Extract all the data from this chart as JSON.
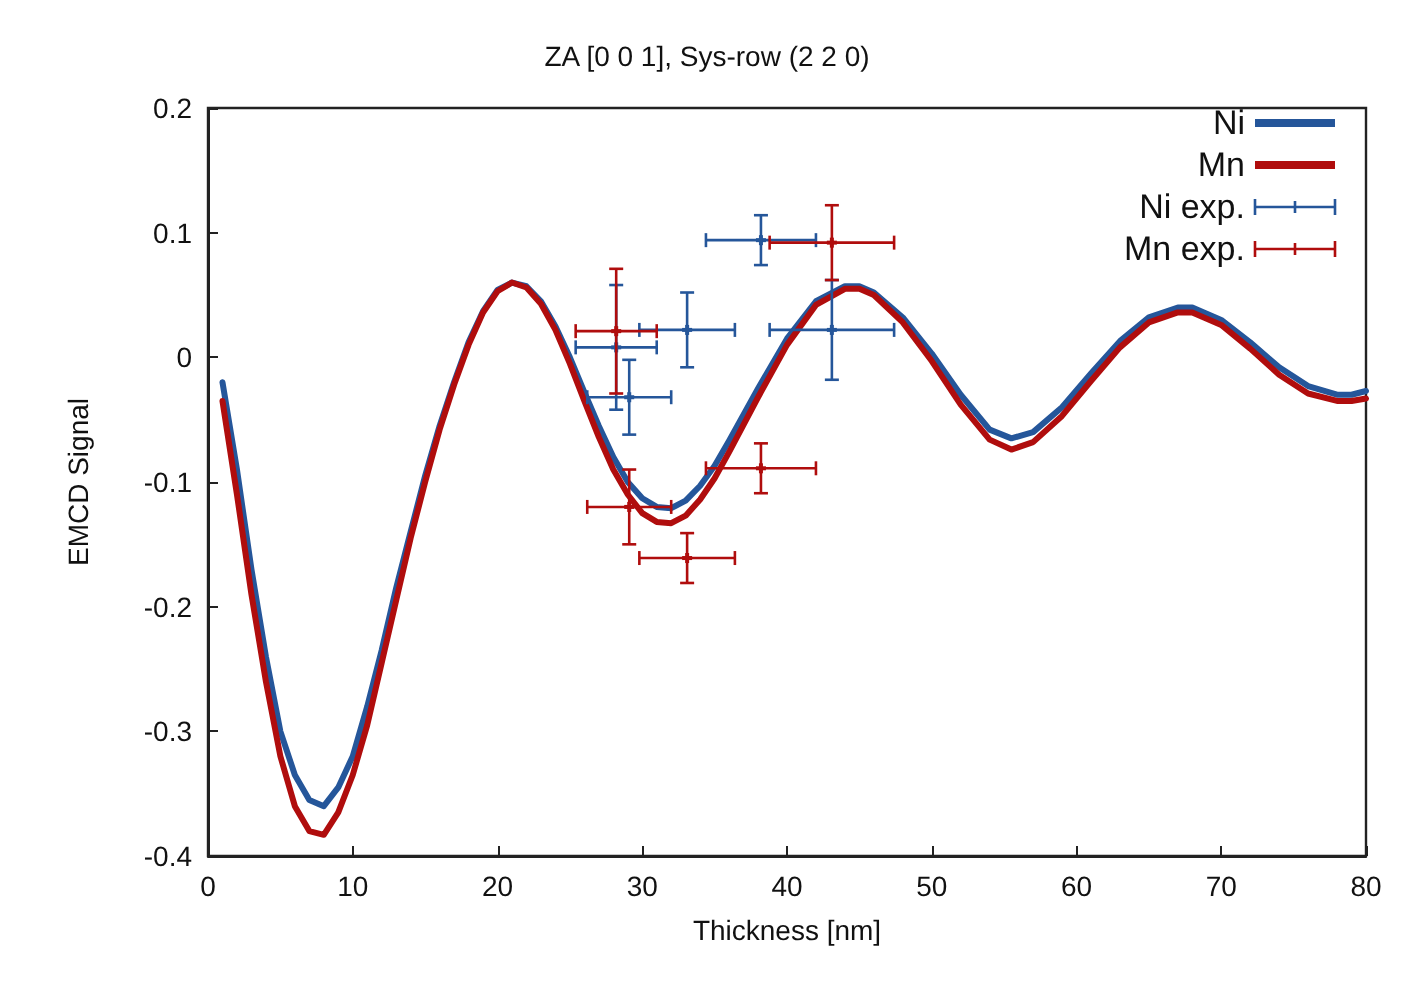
{
  "chart_data": {
    "type": "line",
    "title": "ZA [0 0 1], Sys-row (2 2 0)",
    "xlabel": "Thickness [nm]",
    "ylabel": "EMCD Signal",
    "xlim": [
      0,
      80
    ],
    "xticks": [
      0,
      10,
      20,
      30,
      40,
      50,
      60,
      70,
      80
    ],
    "ylim": [
      -0.4,
      0.2
    ],
    "yticks": [
      -0.4,
      -0.3,
      -0.2,
      -0.1,
      0,
      0.1,
      0.2
    ],
    "grid": false,
    "legend": "top right",
    "line_style": "solid",
    "series": [
      {
        "name": "Ni",
        "color": "#25569a",
        "marker": "none",
        "x": [
          1,
          2,
          3,
          4,
          5,
          6,
          7,
          8,
          9,
          10,
          11,
          12,
          13,
          14,
          15,
          16,
          17,
          18,
          19,
          20,
          21,
          22,
          23,
          24,
          25,
          26,
          27,
          28,
          29,
          30,
          31,
          32,
          33,
          34,
          35,
          36,
          38,
          40,
          42,
          44,
          45,
          46,
          48,
          50,
          52,
          54,
          55.5,
          57,
          59,
          61,
          63,
          65,
          67,
          68,
          70,
          72,
          74,
          76,
          78,
          79,
          80
        ],
        "values": [
          -0.02,
          -0.09,
          -0.17,
          -0.24,
          -0.3,
          -0.335,
          -0.355,
          -0.36,
          -0.345,
          -0.32,
          -0.28,
          -0.235,
          -0.185,
          -0.14,
          -0.095,
          -0.055,
          -0.02,
          0.012,
          0.037,
          0.054,
          0.06,
          0.057,
          0.045,
          0.025,
          0.0,
          -0.028,
          -0.055,
          -0.08,
          -0.1,
          -0.113,
          -0.12,
          -0.121,
          -0.115,
          -0.103,
          -0.087,
          -0.067,
          -0.025,
          0.015,
          0.045,
          0.057,
          0.057,
          0.052,
          0.032,
          0.003,
          -0.03,
          -0.058,
          -0.065,
          -0.06,
          -0.04,
          -0.013,
          0.013,
          0.032,
          0.04,
          0.04,
          0.03,
          0.012,
          -0.008,
          -0.023,
          -0.03,
          -0.03,
          -0.027
        ]
      },
      {
        "name": "Mn",
        "color": "#b00d0d",
        "marker": "none",
        "x": [
          1,
          2,
          3,
          4,
          5,
          6,
          7,
          8,
          9,
          10,
          11,
          12,
          13,
          14,
          15,
          16,
          17,
          18,
          19,
          20,
          21,
          22,
          23,
          24,
          25,
          26,
          27,
          28,
          29,
          30,
          31,
          32,
          33,
          34,
          35,
          36,
          38,
          40,
          42,
          44,
          45,
          46,
          48,
          50,
          52,
          54,
          55.5,
          57,
          59,
          61,
          63,
          65,
          67,
          68,
          70,
          72,
          74,
          76,
          78,
          79,
          80
        ],
        "values": [
          -0.035,
          -0.11,
          -0.19,
          -0.26,
          -0.32,
          -0.36,
          -0.38,
          -0.383,
          -0.365,
          -0.335,
          -0.295,
          -0.245,
          -0.195,
          -0.145,
          -0.1,
          -0.058,
          -0.022,
          0.01,
          0.036,
          0.053,
          0.06,
          0.056,
          0.043,
          0.022,
          -0.005,
          -0.035,
          -0.064,
          -0.09,
          -0.11,
          -0.125,
          -0.132,
          -0.133,
          -0.127,
          -0.114,
          -0.097,
          -0.076,
          -0.032,
          0.01,
          0.042,
          0.055,
          0.055,
          0.05,
          0.028,
          -0.003,
          -0.038,
          -0.066,
          -0.074,
          -0.068,
          -0.047,
          -0.019,
          0.008,
          0.028,
          0.036,
          0.036,
          0.026,
          0.007,
          -0.014,
          -0.029,
          -0.035,
          -0.035,
          -0.033
        ]
      },
      {
        "name": "Ni exp.",
        "type": "scatter",
        "color": "#25569a",
        "marker": "cross",
        "x": [
          38.2,
          33.1,
          43.1,
          28.2,
          29.1
        ],
        "values": [
          0.094,
          0.022,
          0.022,
          0.008,
          -0.032
        ],
        "errors": [
          0.02,
          0.03,
          0.04,
          0.05,
          0.03
        ],
        "xerrors": [
          3.8,
          3.3,
          4.3,
          2.8,
          2.9
        ]
      },
      {
        "name": "Mn exp.",
        "type": "scatter",
        "color": "#b00d0d",
        "marker": "cross",
        "x": [
          43.1,
          28.2,
          38.2,
          29.1,
          33.1
        ],
        "values": [
          0.092,
          0.021,
          -0.089,
          -0.12,
          -0.161
        ],
        "errors": [
          0.03,
          0.05,
          0.02,
          0.03,
          0.02
        ],
        "xerrors": [
          4.3,
          2.8,
          3.8,
          2.9,
          3.3
        ]
      }
    ]
  }
}
